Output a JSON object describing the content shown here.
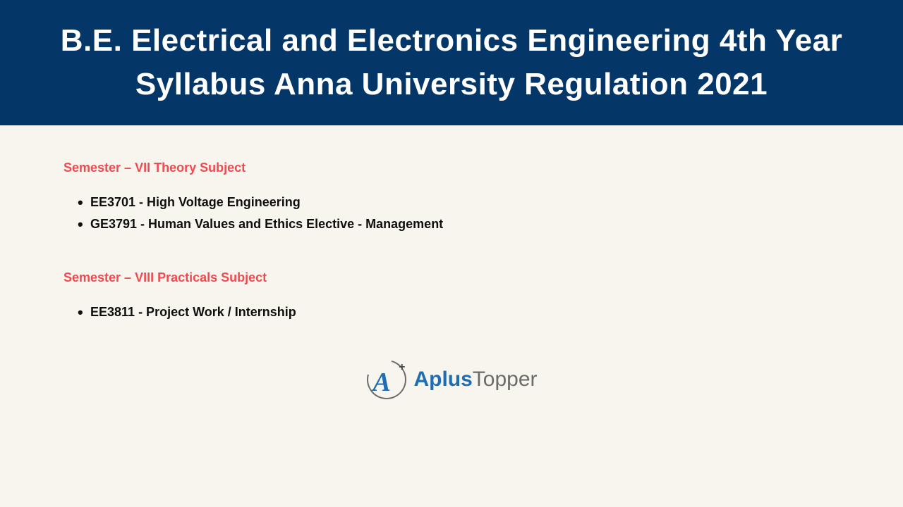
{
  "header": {
    "title": "B.E. Electrical and Electronics Engineering 4th Year Syllabus Anna University Regulation 2021",
    "background_color": "#053668",
    "text_color": "#ffffff",
    "font_size": 44
  },
  "body": {
    "background_color": "#f7f5ed"
  },
  "sections": [
    {
      "title": "Semester – VII Theory Subject",
      "title_color": "#ef4a52",
      "items": [
        "EE3701 - High Voltage Engineering",
        "GE3791 - Human Values and Ethics Elective - Management"
      ],
      "item_color": "#0f0f0f"
    },
    {
      "title": "Semester – VIII Practicals Subject",
      "title_color": "#ef4a52",
      "items": [
        "EE3811 - Project Work / Internship"
      ],
      "item_color": "#0f0f0f"
    }
  ],
  "logo": {
    "letter": "A",
    "plus": "+",
    "text_part1": "Aplus",
    "text_part2": "Topper",
    "part1_color": "#1e6db5",
    "part2_color": "#6b6b6b"
  }
}
